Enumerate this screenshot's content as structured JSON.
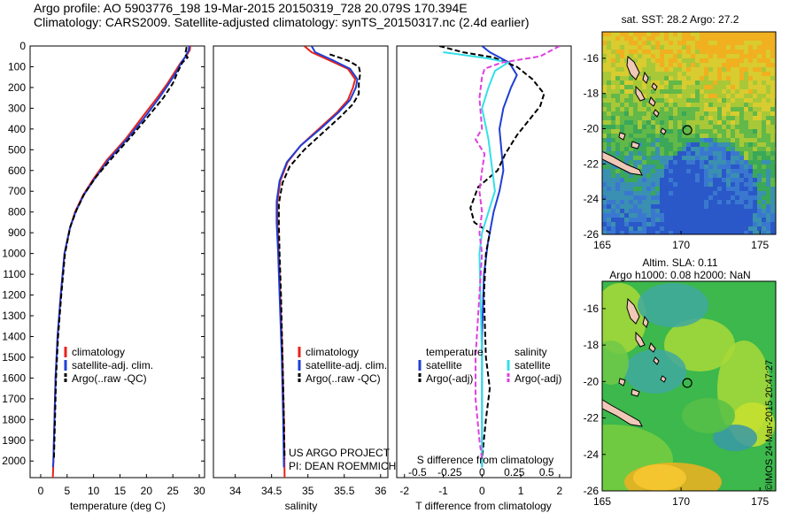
{
  "header": {
    "line1": "Argo profile: AO 5903776_198 19-Mar-2015 20150319_728 20.079S 170.394E",
    "line2": "Climatology: CARS2009. Satellite-adjusted climatology: synTS_20150317.nc (2.4d earlier)"
  },
  "colors": {
    "climatology": "#e8231b",
    "satellite": "#1f3fd6",
    "argo": "#000000",
    "sal_satellite": "#33e0e8",
    "sal_argo": "#e040e0"
  },
  "panel_temperature": {
    "xlabel": "temperature (deg C)",
    "legend": [
      "climatology",
      "satellite-adj. clim.",
      "Argo(..raw -QC)"
    ]
  },
  "panel_salinity": {
    "xlabel": "salinity",
    "legend": [
      "climatology",
      "satellite-adj. clim.",
      "Argo(..raw -QC)"
    ],
    "project": [
      "US ARGO PROJECT",
      "PI: DEAN ROEMMICH"
    ]
  },
  "panel_difference": {
    "xlabel_bottom": "T difference from climatology",
    "xlabel_top": "S difference from climatology",
    "legend_temp_title": "temperature",
    "legend_sal_title": "salinity",
    "legend_temp": [
      "satellite",
      "Argo(-adj)"
    ],
    "legend_sal": [
      "satellite",
      "Argo(-adj)"
    ]
  },
  "map_sst": {
    "title": "sat. SST: 28.2  Argo: 27.2"
  },
  "map_sla": {
    "title1": "Altim. SLA: 0.11",
    "title2": "Argo h1000: 0.08  h2000: NaN"
  },
  "credit": "©IMOS 24-Mar-2015 20:47:27",
  "chart_data": [
    {
      "type": "line",
      "title": "temperature",
      "xlabel": "temperature (deg C)",
      "ylabel": "depth",
      "xlim": [
        -2,
        31
      ],
      "ylim": [
        2080,
        0
      ],
      "xticks": [
        0,
        5,
        10,
        15,
        20,
        25,
        30
      ],
      "yticks": [
        0,
        100,
        200,
        300,
        400,
        500,
        600,
        700,
        800,
        900,
        1000,
        1100,
        1200,
        1300,
        1400,
        1500,
        1600,
        1700,
        1800,
        1900,
        2000
      ],
      "series": [
        {
          "name": "climatology",
          "color": "#e8231b",
          "points": [
            [
              28.3,
              0
            ],
            [
              28.2,
              20
            ],
            [
              27.5,
              50
            ],
            [
              26.5,
              80
            ],
            [
              25.5,
              120
            ],
            [
              24,
              180
            ],
            [
              22,
              250
            ],
            [
              19,
              350
            ],
            [
              16,
              450
            ],
            [
              12.5,
              550
            ],
            [
              10,
              640
            ],
            [
              8,
              720
            ],
            [
              6.5,
              800
            ],
            [
              5.5,
              880
            ],
            [
              4.5,
              1000
            ],
            [
              3.8,
              1200
            ],
            [
              3.2,
              1400
            ],
            [
              2.8,
              1600
            ],
            [
              2.6,
              1800
            ],
            [
              2.4,
              2000
            ],
            [
              2.3,
              2080
            ]
          ]
        },
        {
          "name": "satellite-adj. clim.",
          "color": "#1f3fd6",
          "points": [
            [
              28.1,
              0
            ],
            [
              28,
              20
            ],
            [
              27.4,
              50
            ],
            [
              26.6,
              80
            ],
            [
              25.8,
              120
            ],
            [
              24.3,
              180
            ],
            [
              22.4,
              250
            ],
            [
              19.5,
              350
            ],
            [
              16.3,
              450
            ],
            [
              12.8,
              550
            ],
            [
              10.2,
              640
            ],
            [
              8.1,
              720
            ],
            [
              6.6,
              800
            ],
            [
              5.5,
              880
            ],
            [
              4.5,
              1000
            ],
            [
              3.8,
              1200
            ],
            [
              3.2,
              1400
            ],
            [
              2.8,
              1600
            ],
            [
              2.6,
              1800
            ],
            [
              2.4,
              2000
            ],
            [
              2.3,
              2030
            ]
          ]
        },
        {
          "name": "Argo(..raw -QC)",
          "color": "#000000",
          "dashed": true,
          "points": [
            [
              27.6,
              5
            ],
            [
              27.5,
              20
            ],
            [
              27.3,
              40
            ],
            [
              27.8,
              55
            ],
            [
              26.8,
              80
            ],
            [
              26,
              120
            ],
            [
              25,
              180
            ],
            [
              23.2,
              250
            ],
            [
              20,
              350
            ],
            [
              17,
              440
            ],
            [
              13.5,
              540
            ],
            [
              10.5,
              630
            ],
            [
              8.3,
              710
            ],
            [
              6.8,
              790
            ],
            [
              5.6,
              870
            ],
            [
              4.6,
              1000
            ],
            [
              3.9,
              1200
            ],
            [
              3.3,
              1400
            ],
            [
              2.9,
              1600
            ],
            [
              2.7,
              1800
            ],
            [
              2.5,
              1990
            ]
          ]
        }
      ]
    },
    {
      "type": "line",
      "title": "salinity",
      "xlabel": "salinity",
      "ylabel": "depth",
      "xlim": [
        33.7,
        36.1
      ],
      "ylim": [
        2080,
        0
      ],
      "xticks": [
        34,
        34.5,
        35,
        35.5,
        36
      ],
      "series": [
        {
          "name": "climatology",
          "color": "#e8231b",
          "points": [
            [
              34.95,
              0
            ],
            [
              35.05,
              30
            ],
            [
              35.3,
              70
            ],
            [
              35.55,
              110
            ],
            [
              35.65,
              160
            ],
            [
              35.62,
              200
            ],
            [
              35.55,
              260
            ],
            [
              35.4,
              320
            ],
            [
              35.15,
              400
            ],
            [
              34.9,
              480
            ],
            [
              34.72,
              560
            ],
            [
              34.62,
              650
            ],
            [
              34.58,
              750
            ],
            [
              34.58,
              850
            ],
            [
              34.6,
              1000
            ],
            [
              34.62,
              1200
            ],
            [
              34.65,
              1500
            ],
            [
              34.67,
              1800
            ],
            [
              34.68,
              2080
            ]
          ]
        },
        {
          "name": "satellite-adj. clim.",
          "color": "#1f3fd6",
          "points": [
            [
              35.05,
              0
            ],
            [
              35.1,
              30
            ],
            [
              35.35,
              70
            ],
            [
              35.58,
              110
            ],
            [
              35.68,
              160
            ],
            [
              35.66,
              200
            ],
            [
              35.58,
              260
            ],
            [
              35.42,
              320
            ],
            [
              35.17,
              400
            ],
            [
              34.9,
              480
            ],
            [
              34.71,
              560
            ],
            [
              34.61,
              650
            ],
            [
              34.57,
              750
            ],
            [
              34.57,
              850
            ],
            [
              34.59,
              1000
            ],
            [
              34.61,
              1200
            ],
            [
              34.64,
              1500
            ],
            [
              34.66,
              1800
            ],
            [
              34.67,
              2030
            ]
          ]
        },
        {
          "name": "Argo(..raw -QC)",
          "color": "#000000",
          "dashed": true,
          "points": [
            [
              35.3,
              40
            ],
            [
              35.55,
              70
            ],
            [
              35.7,
              100
            ],
            [
              35.72,
              130
            ],
            [
              35.7,
              180
            ],
            [
              35.7,
              230
            ],
            [
              35.62,
              280
            ],
            [
              35.45,
              340
            ],
            [
              35.2,
              420
            ],
            [
              34.95,
              500
            ],
            [
              34.75,
              580
            ],
            [
              34.65,
              660
            ],
            [
              34.6,
              760
            ],
            [
              34.6,
              860
            ],
            [
              34.61,
              1000
            ],
            [
              34.63,
              1200
            ],
            [
              34.65,
              1500
            ],
            [
              34.67,
              1800
            ],
            [
              34.68,
              1990
            ]
          ]
        }
      ]
    },
    {
      "type": "line",
      "title": "difference from climatology",
      "xlabel": "T difference from climatology",
      "xlim_T": [
        -2.2,
        2.3
      ],
      "xticks_T": [
        -2,
        -1,
        0,
        1,
        2
      ],
      "xlim_S": [
        -0.66,
        0.69
      ],
      "xticks_S": [
        -0.5,
        -0.25,
        0,
        0.25,
        0.5
      ],
      "series": [
        {
          "name": "temperature satellite",
          "axis": "T",
          "color": "#1f3fd6",
          "points": [
            [
              0,
              0
            ],
            [
              0.2,
              30
            ],
            [
              0.7,
              80
            ],
            [
              0.9,
              140
            ],
            [
              0.75,
              200
            ],
            [
              0.55,
              300
            ],
            [
              0.45,
              400
            ],
            [
              0.5,
              500
            ],
            [
              0.55,
              600
            ],
            [
              0.45,
              700
            ],
            [
              0.3,
              800
            ],
            [
              0.15,
              950
            ],
            [
              0.05,
              1100
            ],
            [
              0,
              1400
            ],
            [
              0,
              2030
            ]
          ]
        },
        {
          "name": "temperature Argo(-adj)",
          "axis": "T",
          "color": "#000000",
          "dashed": true,
          "points": [
            [
              -1.1,
              0
            ],
            [
              -0.5,
              30
            ],
            [
              0.3,
              55
            ],
            [
              0.9,
              100
            ],
            [
              1.3,
              160
            ],
            [
              1.6,
              230
            ],
            [
              1.5,
              290
            ],
            [
              1.2,
              360
            ],
            [
              0.9,
              430
            ],
            [
              0.6,
              520
            ],
            [
              0.4,
              600
            ],
            [
              -0.1,
              680
            ],
            [
              -0.3,
              780
            ],
            [
              -0.2,
              850
            ],
            [
              0.2,
              900
            ],
            [
              0.1,
              1000
            ],
            [
              0.05,
              1200
            ],
            [
              0.1,
              1500
            ],
            [
              0.2,
              1650
            ],
            [
              0.1,
              1800
            ],
            [
              0,
              1990
            ]
          ]
        },
        {
          "name": "salinity satellite",
          "axis": "S",
          "color": "#33e0e8",
          "points": [
            [
              -0.3,
              30
            ],
            [
              0.05,
              60
            ],
            [
              0.2,
              80
            ],
            [
              0.1,
              120
            ],
            [
              0.05,
              200
            ],
            [
              0,
              300
            ],
            [
              0.05,
              450
            ],
            [
              0.08,
              600
            ],
            [
              0.1,
              700
            ],
            [
              0.05,
              800
            ],
            [
              0,
              900
            ],
            [
              -0.02,
              1000
            ],
            [
              0,
              1500
            ],
            [
              0,
              2030
            ]
          ]
        },
        {
          "name": "salinity Argo(-adj)",
          "axis": "S",
          "color": "#e040e0",
          "dashed": true,
          "points": [
            [
              0.6,
              0
            ],
            [
              0.45,
              50
            ],
            [
              0.15,
              80
            ],
            [
              0.02,
              110
            ],
            [
              0,
              150
            ],
            [
              -0.02,
              250
            ],
            [
              0,
              400
            ],
            [
              -0.05,
              450
            ],
            [
              0.02,
              520
            ],
            [
              0,
              600
            ],
            [
              -0.02,
              700
            ],
            [
              0,
              800
            ],
            [
              -0.02,
              900
            ],
            [
              0,
              1000
            ],
            [
              -0.05,
              1500
            ],
            [
              -0.05,
              1700
            ],
            [
              -0.02,
              1900
            ],
            [
              0,
              1990
            ]
          ]
        }
      ]
    },
    {
      "type": "heatmap",
      "title": "sat. SST: 28.2  Argo: 27.2",
      "xlim": [
        165,
        176
      ],
      "ylim": [
        -26,
        -14.5
      ],
      "xticks": [
        165,
        170,
        175
      ],
      "yticks": [
        -16,
        -18,
        -20,
        -22,
        -24,
        -26
      ],
      "argo_position": [
        170.394,
        -20.079
      ]
    },
    {
      "type": "heatmap",
      "title": "Altim. SLA: 0.11 / Argo h1000: 0.08  h2000: NaN",
      "xlim": [
        165,
        176
      ],
      "ylim": [
        -26,
        -14.5
      ],
      "xticks": [
        165,
        170,
        175
      ],
      "yticks": [
        -16,
        -18,
        -20,
        -22,
        -24,
        -26
      ],
      "argo_position": [
        170.394,
        -20.079
      ]
    }
  ]
}
